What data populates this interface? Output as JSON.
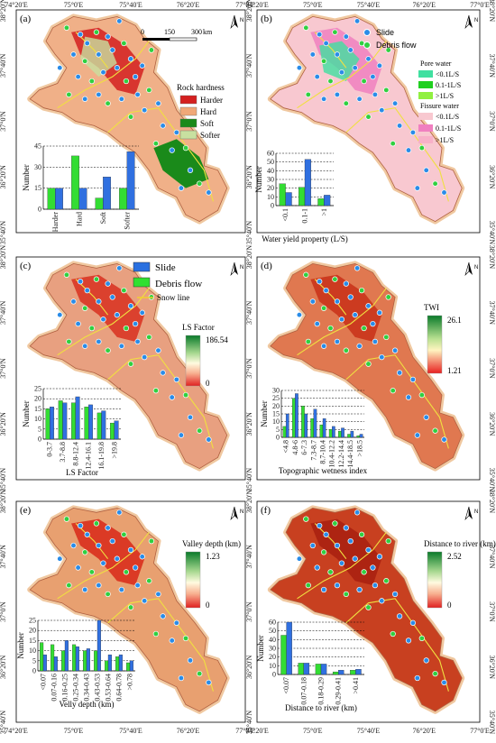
{
  "map": {
    "top_ticks": [
      "74°20'E",
      "75°0'E",
      "75°40'E",
      "76°20'E",
      "77°0'E"
    ],
    "bottom_ticks": [
      "74°20'E",
      "75°0'E",
      "75°40'E",
      "76°20'E",
      "77°0'E"
    ],
    "left_ticks": [
      "38°20'N",
      "37°40'N",
      "37°0'N",
      "36°20'N",
      "35°40'N"
    ],
    "right_ticks": [
      "38°20'N",
      "37°40'N",
      "37°0'N",
      "36°20'N",
      "35°40'N"
    ],
    "north_label": "N"
  },
  "panels": {
    "a": {
      "letter": "(a)",
      "scale": {
        "zero": "0",
        "mid": "150",
        "end": "300",
        "unit": "km"
      },
      "legend_title": "Rock hardness",
      "legend": [
        {
          "label": "Harder",
          "color": "#d42020"
        },
        {
          "label": "Hard",
          "color": "#f0a878"
        },
        {
          "label": "Soft",
          "color": "#1a8a1a"
        },
        {
          "label": "Softer",
          "color": "#c8e0a0"
        }
      ],
      "ylabel": "Number"
    },
    "b": {
      "letter": "(b)",
      "marker_legend": {
        "slide": "Slide",
        "debris": "Debris flow"
      },
      "pore_title": "Pore water",
      "pore": [
        {
          "label": "<0.1L/S",
          "color": "#40e0a0"
        },
        {
          "label": "0.1-1L/S",
          "color": "#20d020"
        },
        {
          "label": ">1L/S",
          "color": "#90f040"
        }
      ],
      "fissure_title": "Fissure water",
      "fissure": [
        {
          "label": "<0.1L/S",
          "color": "#f8c8d0"
        },
        {
          "label": "0.1-1L/S",
          "color": "#f080c0"
        },
        {
          "label": ">1L/S",
          "color": "#f8b0c8"
        }
      ],
      "xlabel": "Water yield property (L/S)",
      "ylabel": "Number"
    },
    "c": {
      "letter": "(c)",
      "legend_slide": "Slide",
      "legend_debris": "Debris flow",
      "legend_snow": "Snow line",
      "ramp_title": "LS Factor",
      "ramp_max": "186.54",
      "ramp_min": "0",
      "xlabel": "LS Factor",
      "ylabel": "Number"
    },
    "d": {
      "letter": "(d)",
      "ramp_title": "TWI",
      "ramp_max": "26.1",
      "ramp_min": "1.21",
      "xlabel": "Topographic wetness index",
      "ylabel": "Number"
    },
    "e": {
      "letter": "(e)",
      "ramp_title": "Valley depth (km)",
      "ramp_max": "1.23",
      "ramp_min": "0",
      "xlabel": "Velly depth (km)",
      "ylabel": "Number"
    },
    "f": {
      "letter": "(f)",
      "ramp_title": "Distance to river (km)",
      "ramp_max": "2.52",
      "ramp_min": "0",
      "xlabel": "Distance to river (km)",
      "ylabel": "Number"
    }
  },
  "chart_data": [
    {
      "panel": "a",
      "type": "bar",
      "categories": [
        "Harder",
        "Hard",
        "Soft",
        "Softer"
      ],
      "yticks": [
        0,
        15,
        30,
        45
      ],
      "ylim": [
        0,
        45
      ],
      "series": [
        {
          "color": "#33dd33",
          "values": [
            15,
            38,
            8,
            15
          ]
        },
        {
          "color": "#3070e0",
          "values": [
            15,
            15,
            23,
            41
          ]
        }
      ]
    },
    {
      "panel": "b",
      "type": "bar",
      "categories": [
        "<0.1",
        "0.1-1",
        ">1"
      ],
      "yticks": [
        0,
        10,
        20,
        30,
        40,
        50,
        60
      ],
      "ylim": [
        0,
        60
      ],
      "series": [
        {
          "color": "#33dd33",
          "values": [
            25,
            21,
            8
          ]
        },
        {
          "color": "#3070e0",
          "values": [
            15,
            53,
            12
          ]
        }
      ]
    },
    {
      "panel": "c",
      "type": "bar",
      "categories": [
        "0-3.7",
        "3.7-8.8",
        "8.8-12.4",
        "12.4-16.1",
        "16.1-19.8",
        ">19.8"
      ],
      "yticks": [
        0,
        5,
        10,
        15,
        20,
        25
      ],
      "ylim": [
        0,
        25
      ],
      "series": [
        {
          "color": "#33dd33",
          "values": [
            15,
            19,
            18,
            16,
            13,
            8
          ]
        },
        {
          "color": "#3070e0",
          "values": [
            16,
            18,
            21,
            17,
            14,
            9
          ]
        }
      ]
    },
    {
      "panel": "d",
      "type": "bar",
      "categories": [
        "<4.8",
        "4.8-6",
        "6-7.3",
        "7.3-8.7",
        "8.7-10.4",
        "10.4-12.2",
        "12.2-14.4",
        "14.4-18.5",
        ">18.5"
      ],
      "yticks": [
        0,
        5,
        10,
        15,
        20,
        25,
        30
      ],
      "ylim": [
        0,
        30
      ],
      "series": [
        {
          "color": "#33dd33",
          "values": [
            7,
            25,
            20,
            12,
            8,
            5,
            4,
            2,
            1
          ]
        },
        {
          "color": "#3070e0",
          "values": [
            15,
            28,
            15,
            18,
            12,
            7,
            6,
            4,
            2
          ]
        }
      ]
    },
    {
      "panel": "e",
      "type": "bar",
      "categories": [
        "<0.07",
        "0.07-0.16",
        "0.16-0.25",
        "0.25-0.34",
        "0.34-0.43",
        "0.43-0.53",
        "0.53-0.64",
        "0.64-0.78",
        ">0.78"
      ],
      "yticks": [
        0,
        5,
        10,
        15,
        20,
        25
      ],
      "ylim": [
        0,
        25
      ],
      "series": [
        {
          "color": "#33dd33",
          "values": [
            14,
            13,
            10,
            13,
            10,
            10,
            5,
            7,
            4
          ]
        },
        {
          "color": "#3070e0",
          "values": [
            8,
            7,
            15,
            12,
            11,
            25,
            8,
            8,
            5
          ]
        }
      ]
    },
    {
      "panel": "f",
      "type": "bar",
      "categories": [
        "<0.07",
        "0.07-0.18",
        "0.18-0.29",
        "0.29-0.41",
        ">0.41"
      ],
      "yticks": [
        0,
        10,
        20,
        30,
        40,
        50,
        60
      ],
      "ylim": [
        0,
        60
      ],
      "series": [
        {
          "color": "#33dd33",
          "values": [
            45,
            13,
            12,
            3,
            5
          ]
        },
        {
          "color": "#3070e0",
          "values": [
            60,
            13,
            12,
            5,
            6
          ]
        }
      ]
    }
  ]
}
